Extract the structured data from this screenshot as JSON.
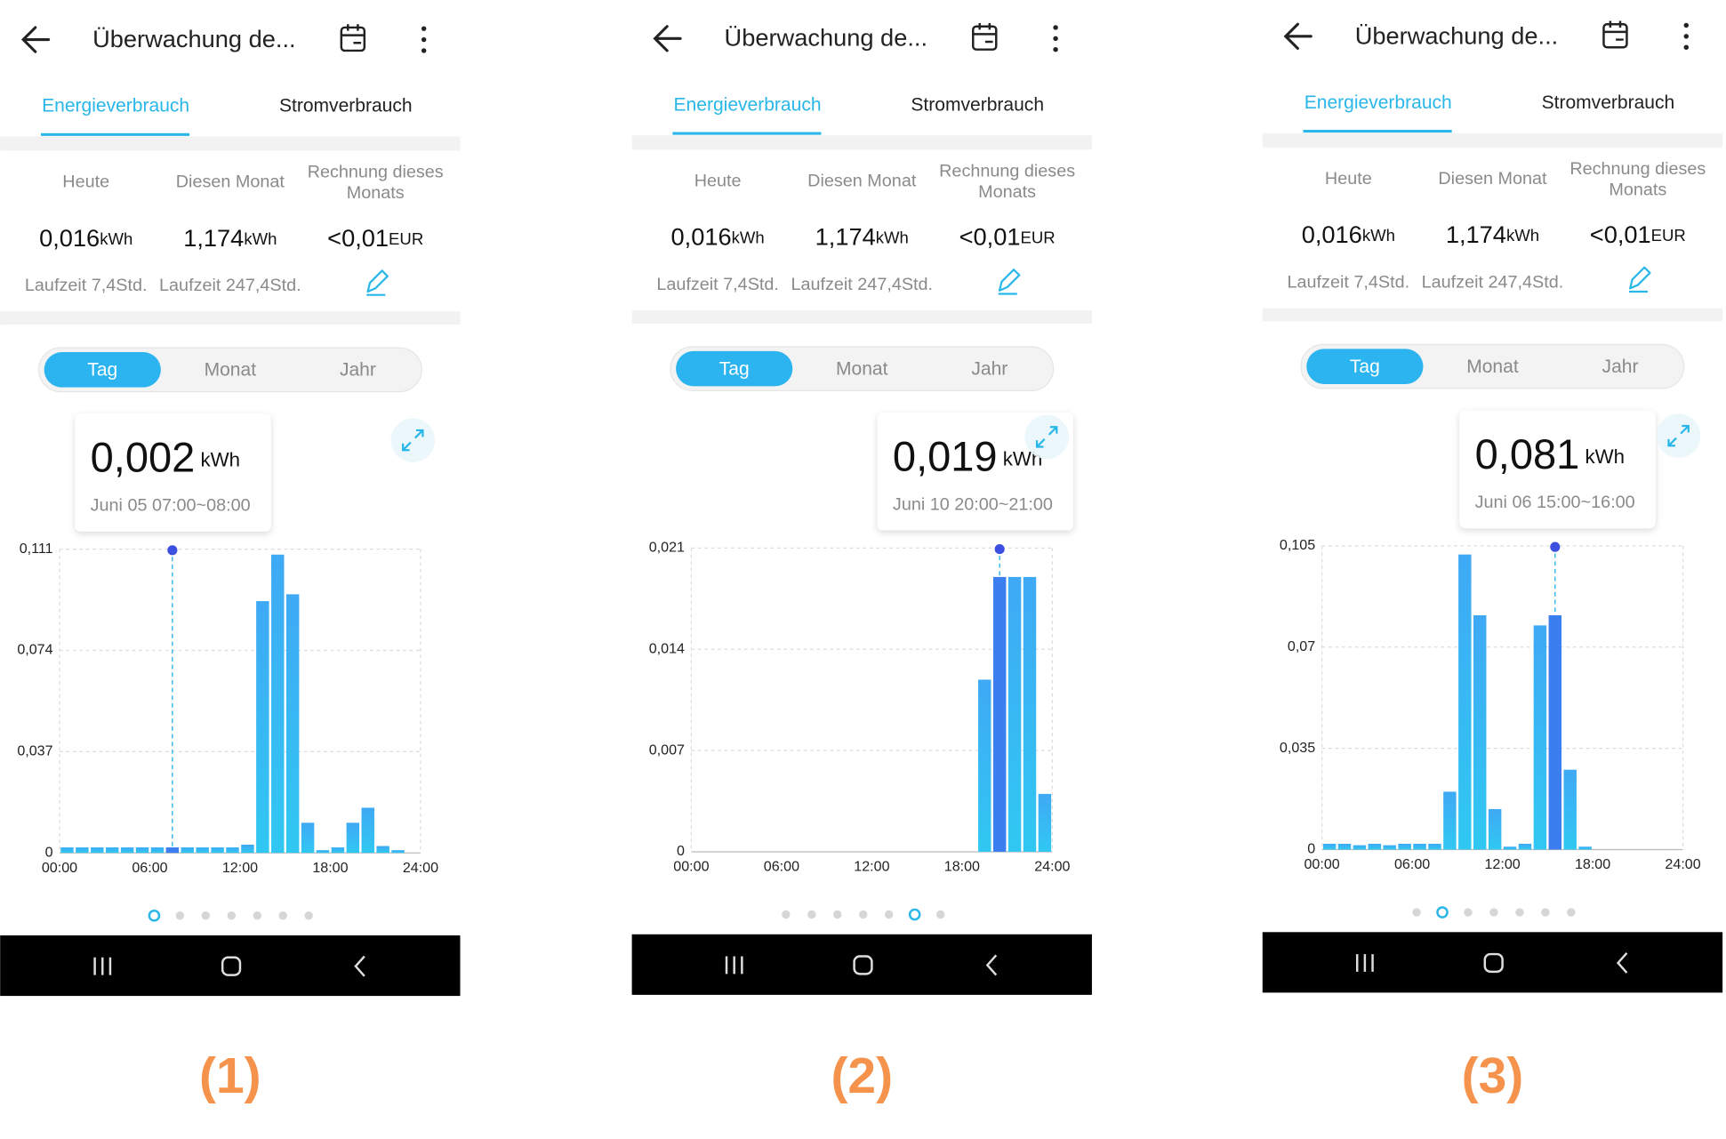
{
  "panels": [
    {
      "header": {
        "title": "Überwachung de..."
      },
      "tabs": [
        "Energieverbrauch",
        "Stromverbrauch"
      ],
      "stats": [
        {
          "label": [
            "Heute"
          ],
          "value": "0,016",
          "unit": "kWh",
          "sub": "Laufzeit 7,4Std."
        },
        {
          "label": [
            "Diesen Monat"
          ],
          "value": "1,174",
          "unit": "kWh",
          "sub": "Laufzeit 247,4Std."
        },
        {
          "label": [
            "Rechnung dieses",
            "Monats"
          ],
          "value": "<0,01",
          "unit": "EUR"
        }
      ],
      "range_tabs": [
        "Tag",
        "Monat",
        "Jahr"
      ],
      "tooltip": {
        "value": "0,002",
        "unit": "kWh",
        "time": "Juni 05 07:00~08:00"
      },
      "chart": {
        "type": "bar",
        "ylim": [
          0,
          0.111
        ],
        "yticks": [
          0,
          {
            "value": 0.037,
            "label": "0,037"
          },
          {
            "value": 0.074,
            "label": "0,074"
          },
          {
            "value": 0.111,
            "label": "0,111"
          }
        ],
        "x_labels": [
          "00:00",
          "06:00",
          "12:00",
          "18:00",
          "24:00"
        ],
        "values": [
          0.002,
          0.002,
          0.002,
          0.002,
          0.002,
          0.002,
          0.002,
          0.002,
          0.002,
          0.002,
          0.002,
          0.002,
          0.003,
          0.092,
          0.109,
          0.0945,
          0.011,
          0.001,
          0.002,
          0.011,
          0.0165,
          0.0025,
          0.001,
          0
        ],
        "highlight": 7,
        "grid": true
      },
      "pages": 7,
      "page_index": 0,
      "caption": "(1)"
    },
    {
      "header": {
        "title": "Überwachung de..."
      },
      "tabs": [
        "Energieverbrauch",
        "Stromverbrauch"
      ],
      "stats": [
        {
          "label": [
            "Heute"
          ],
          "value": "0,016",
          "unit": "kWh",
          "sub": "Laufzeit 7,4Std."
        },
        {
          "label": [
            "Diesen Monat"
          ],
          "value": "1,174",
          "unit": "kWh",
          "sub": "Laufzeit 247,4Std."
        },
        {
          "label": [
            "Rechnung dieses",
            "Monats"
          ],
          "value": "<0,01",
          "unit": "EUR"
        }
      ],
      "range_tabs": [
        "Tag",
        "Monat",
        "Jahr"
      ],
      "tooltip": {
        "value": "0,019",
        "unit": "kWh",
        "time": "Juni 10 20:00~21:00"
      },
      "chart": {
        "type": "bar",
        "ylim": [
          0,
          0.021
        ],
        "yticks": [
          0,
          {
            "value": 0.007,
            "label": "0,007"
          },
          {
            "value": 0.014,
            "label": "0,014"
          },
          {
            "value": 0.021,
            "label": "0,021"
          }
        ],
        "x_labels": [
          "00:00",
          "06:00",
          "12:00",
          "18:00",
          "24:00"
        ],
        "values": [
          0,
          0,
          0,
          0,
          0,
          0,
          0,
          0,
          0,
          0,
          0,
          0,
          0,
          0,
          0,
          0,
          0,
          0,
          0,
          0.0119,
          0.019,
          0.019,
          0.019,
          0.004
        ],
        "highlight": 20,
        "grid": true
      },
      "pages": 7,
      "page_index": 5,
      "caption": "(2)"
    },
    {
      "header": {
        "title": "Überwachung de..."
      },
      "tabs": [
        "Energieverbrauch",
        "Stromverbrauch"
      ],
      "stats": [
        {
          "label": [
            "Heute"
          ],
          "value": "0,016",
          "unit": "kWh",
          "sub": "Laufzeit 7,4Std."
        },
        {
          "label": [
            "Diesen Monat"
          ],
          "value": "1,174",
          "unit": "kWh",
          "sub": "Laufzeit 247,4Std."
        },
        {
          "label": [
            "Rechnung dieses",
            "Monats"
          ],
          "value": "<0,01",
          "unit": "EUR"
        }
      ],
      "range_tabs": [
        "Tag",
        "Monat",
        "Jahr"
      ],
      "tooltip": {
        "value": "0,081",
        "unit": "kWh",
        "time": "Juni 06 15:00~16:00"
      },
      "chart": {
        "type": "bar",
        "ylim": [
          0,
          0.105
        ],
        "yticks": [
          0,
          {
            "value": 0.035,
            "label": "0,035"
          },
          {
            "value": 0.07,
            "label": "0,07"
          },
          {
            "value": 0.105,
            "label": "0,105"
          }
        ],
        "x_labels": [
          "00:00",
          "06:00",
          "12:00",
          "18:00",
          "24:00"
        ],
        "values": [
          0.002,
          0.002,
          0.0015,
          0.002,
          0.0015,
          0.002,
          0.002,
          0.002,
          0.02,
          0.102,
          0.081,
          0.014,
          0.001,
          0.002,
          0.0775,
          0.081,
          0.0276,
          0.001,
          0,
          0,
          0,
          0,
          0,
          0
        ],
        "highlight": 15,
        "grid": true
      },
      "pages": 7,
      "page_index": 1,
      "caption": "(3)"
    }
  ]
}
